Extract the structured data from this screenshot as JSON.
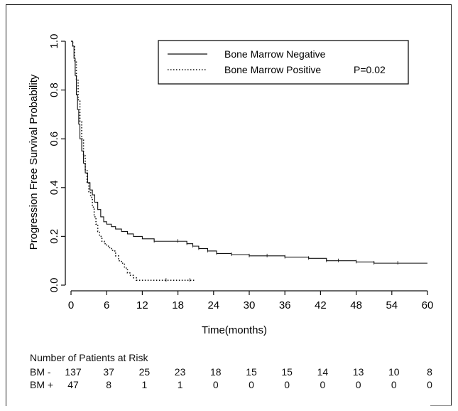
{
  "chart_data": {
    "type": "line",
    "subtype": "kaplan-meier",
    "xlabel": "Time(months)",
    "ylabel": "Progression Free Survival Probability",
    "xlim": [
      0,
      60
    ],
    "ylim": [
      0,
      1.0
    ],
    "xticks": [
      0,
      6,
      12,
      18,
      24,
      30,
      36,
      42,
      48,
      54,
      60
    ],
    "yticks": [
      "0.0",
      "0.2",
      "0.4",
      "0.6",
      "0.8",
      "1.0"
    ],
    "grid": false,
    "legend_position": "top-right",
    "legend": [
      {
        "label": "Bone Marrow Negative",
        "style": "solid"
      },
      {
        "label": "Bone Marrow Positive",
        "style": "dotted"
      }
    ],
    "legend_annotation": "P=0.02",
    "series": [
      {
        "name": "Bone Marrow Negative",
        "style": "solid",
        "x": [
          0,
          0.3,
          0.5,
          0.7,
          0.9,
          1.1,
          1.3,
          1.5,
          1.8,
          2.1,
          2.4,
          2.8,
          3.2,
          3.6,
          4.0,
          4.5,
          5.0,
          5.5,
          6.0,
          6.8,
          7.5,
          8.5,
          9.5,
          10.5,
          12.0,
          14.0,
          18.0,
          19.5,
          20.5,
          21.5,
          23.0,
          24.5,
          27.0,
          30.0,
          33.0,
          36.0,
          40.0,
          43.0,
          45.0,
          48.0,
          51.0,
          55.0,
          60.0
        ],
        "y": [
          1.0,
          0.98,
          0.93,
          0.86,
          0.78,
          0.72,
          0.66,
          0.6,
          0.55,
          0.5,
          0.46,
          0.42,
          0.39,
          0.37,
          0.34,
          0.31,
          0.28,
          0.26,
          0.25,
          0.24,
          0.23,
          0.22,
          0.21,
          0.2,
          0.19,
          0.18,
          0.18,
          0.17,
          0.16,
          0.15,
          0.14,
          0.13,
          0.125,
          0.12,
          0.12,
          0.115,
          0.11,
          0.1,
          0.1,
          0.095,
          0.09,
          0.09,
          0.09
        ]
      },
      {
        "name": "Bone Marrow Positive",
        "style": "dotted",
        "x": [
          0,
          0.3,
          0.6,
          0.9,
          1.2,
          1.5,
          1.8,
          2.1,
          2.4,
          2.7,
          3.0,
          3.3,
          3.6,
          3.9,
          4.2,
          4.5,
          4.8,
          5.2,
          5.6,
          6.0,
          6.5,
          7.0,
          7.5,
          8.0,
          8.5,
          9.0,
          9.5,
          10.0,
          10.5,
          11.0,
          12.0,
          16.0,
          20.0,
          21.0
        ],
        "y": [
          1.0,
          0.98,
          0.92,
          0.84,
          0.76,
          0.67,
          0.6,
          0.53,
          0.47,
          0.42,
          0.38,
          0.36,
          0.32,
          0.28,
          0.25,
          0.22,
          0.2,
          0.18,
          0.17,
          0.16,
          0.15,
          0.14,
          0.12,
          0.1,
          0.09,
          0.07,
          0.05,
          0.04,
          0.03,
          0.02,
          0.02,
          0.02,
          0.02,
          0.02
        ]
      }
    ],
    "risk_table": {
      "title": "Number of Patients at Risk",
      "rows": [
        {
          "label": "BM -",
          "values": [
            "137",
            "37",
            "25",
            "23",
            "18",
            "15",
            "15",
            "14",
            "13",
            "10",
            "8"
          ]
        },
        {
          "label": "BM +",
          "values": [
            "47",
            "8",
            "1",
            "1",
            "0",
            "0",
            "0",
            "0",
            "0",
            "0",
            "0"
          ]
        }
      ]
    }
  }
}
